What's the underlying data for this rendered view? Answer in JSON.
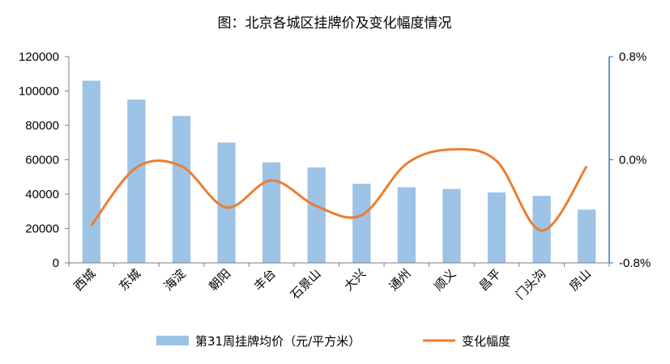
{
  "chart_data": {
    "type": "bar+line",
    "title": "图：北京各城区挂牌价及变化幅度情况",
    "categories": [
      "西城",
      "东城",
      "海淀",
      "朝阳",
      "丰台",
      "石景山",
      "大兴",
      "通州",
      "顺义",
      "昌平",
      "门头沟",
      "房山"
    ],
    "series": [
      {
        "name": "第31周挂牌均价（元/平方米）",
        "type": "bar",
        "axis": "left",
        "color": "#9dc3e6",
        "values": [
          106000,
          95000,
          85500,
          70000,
          58500,
          55500,
          46000,
          44000,
          43000,
          41000,
          39000,
          31000
        ]
      },
      {
        "name": "变化幅度",
        "type": "line",
        "axis": "right",
        "color": "#ed7d31",
        "values": [
          -0.0051,
          -0.0006,
          -0.0005,
          -0.0037,
          -0.0016,
          -0.0036,
          -0.0043,
          -0.0003,
          0.0008,
          -0.0001,
          -0.0055,
          -0.0005
        ]
      }
    ],
    "y_left": {
      "min": 0,
      "max": 120000,
      "step": 20000,
      "tick_labels": [
        "0",
        "20000",
        "40000",
        "60000",
        "80000",
        "100000",
        "120000"
      ]
    },
    "y_right": {
      "min": -0.008,
      "max": 0.008,
      "tick_labels": [
        "-0.8%",
        "0.0%",
        "0.8%"
      ]
    },
    "grid": false,
    "legend": "bottom"
  }
}
